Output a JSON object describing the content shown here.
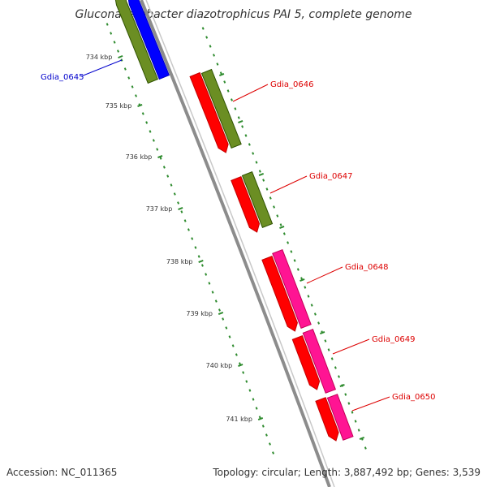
{
  "title": "Gluconacetobacter diazotrophicus PAI 5, complete genome",
  "footer": {
    "accession": "Accession: NC_011365",
    "summary": "Topology: circular; Length: 3,887,492 bp; Genes: 3,539"
  },
  "colors": {
    "backbone": "#8c8c8c",
    "tick": "#2e8b2e",
    "tick_label": "#333333",
    "olive": "#6b8e23",
    "blue": "#0000ff",
    "red": "#ff0000",
    "magenta": "#ff1493",
    "label_red": "#dd0000",
    "label_blue": "#0000cc"
  },
  "ticks": [
    {
      "label": "734 kbp"
    },
    {
      "label": "735 kbp"
    },
    {
      "label": "736 kbp"
    },
    {
      "label": "737 kbp"
    },
    {
      "label": "738 kbp"
    },
    {
      "label": "739 kbp"
    },
    {
      "label": "740 kbp"
    },
    {
      "label": "741 kbp"
    }
  ],
  "genes": [
    {
      "id": "Gdia_0645",
      "strand": "reverse",
      "color_key": "blue"
    },
    {
      "id": "Gdia_0646",
      "strand": "forward",
      "color_key": "red"
    },
    {
      "id": "Gdia_0647",
      "strand": "forward",
      "color_key": "red"
    },
    {
      "id": "Gdia_0648",
      "strand": "forward",
      "color_key": "red"
    },
    {
      "id": "Gdia_0649",
      "strand": "forward",
      "color_key": "red"
    },
    {
      "id": "Gdia_0650",
      "strand": "forward",
      "color_key": "red"
    }
  ]
}
